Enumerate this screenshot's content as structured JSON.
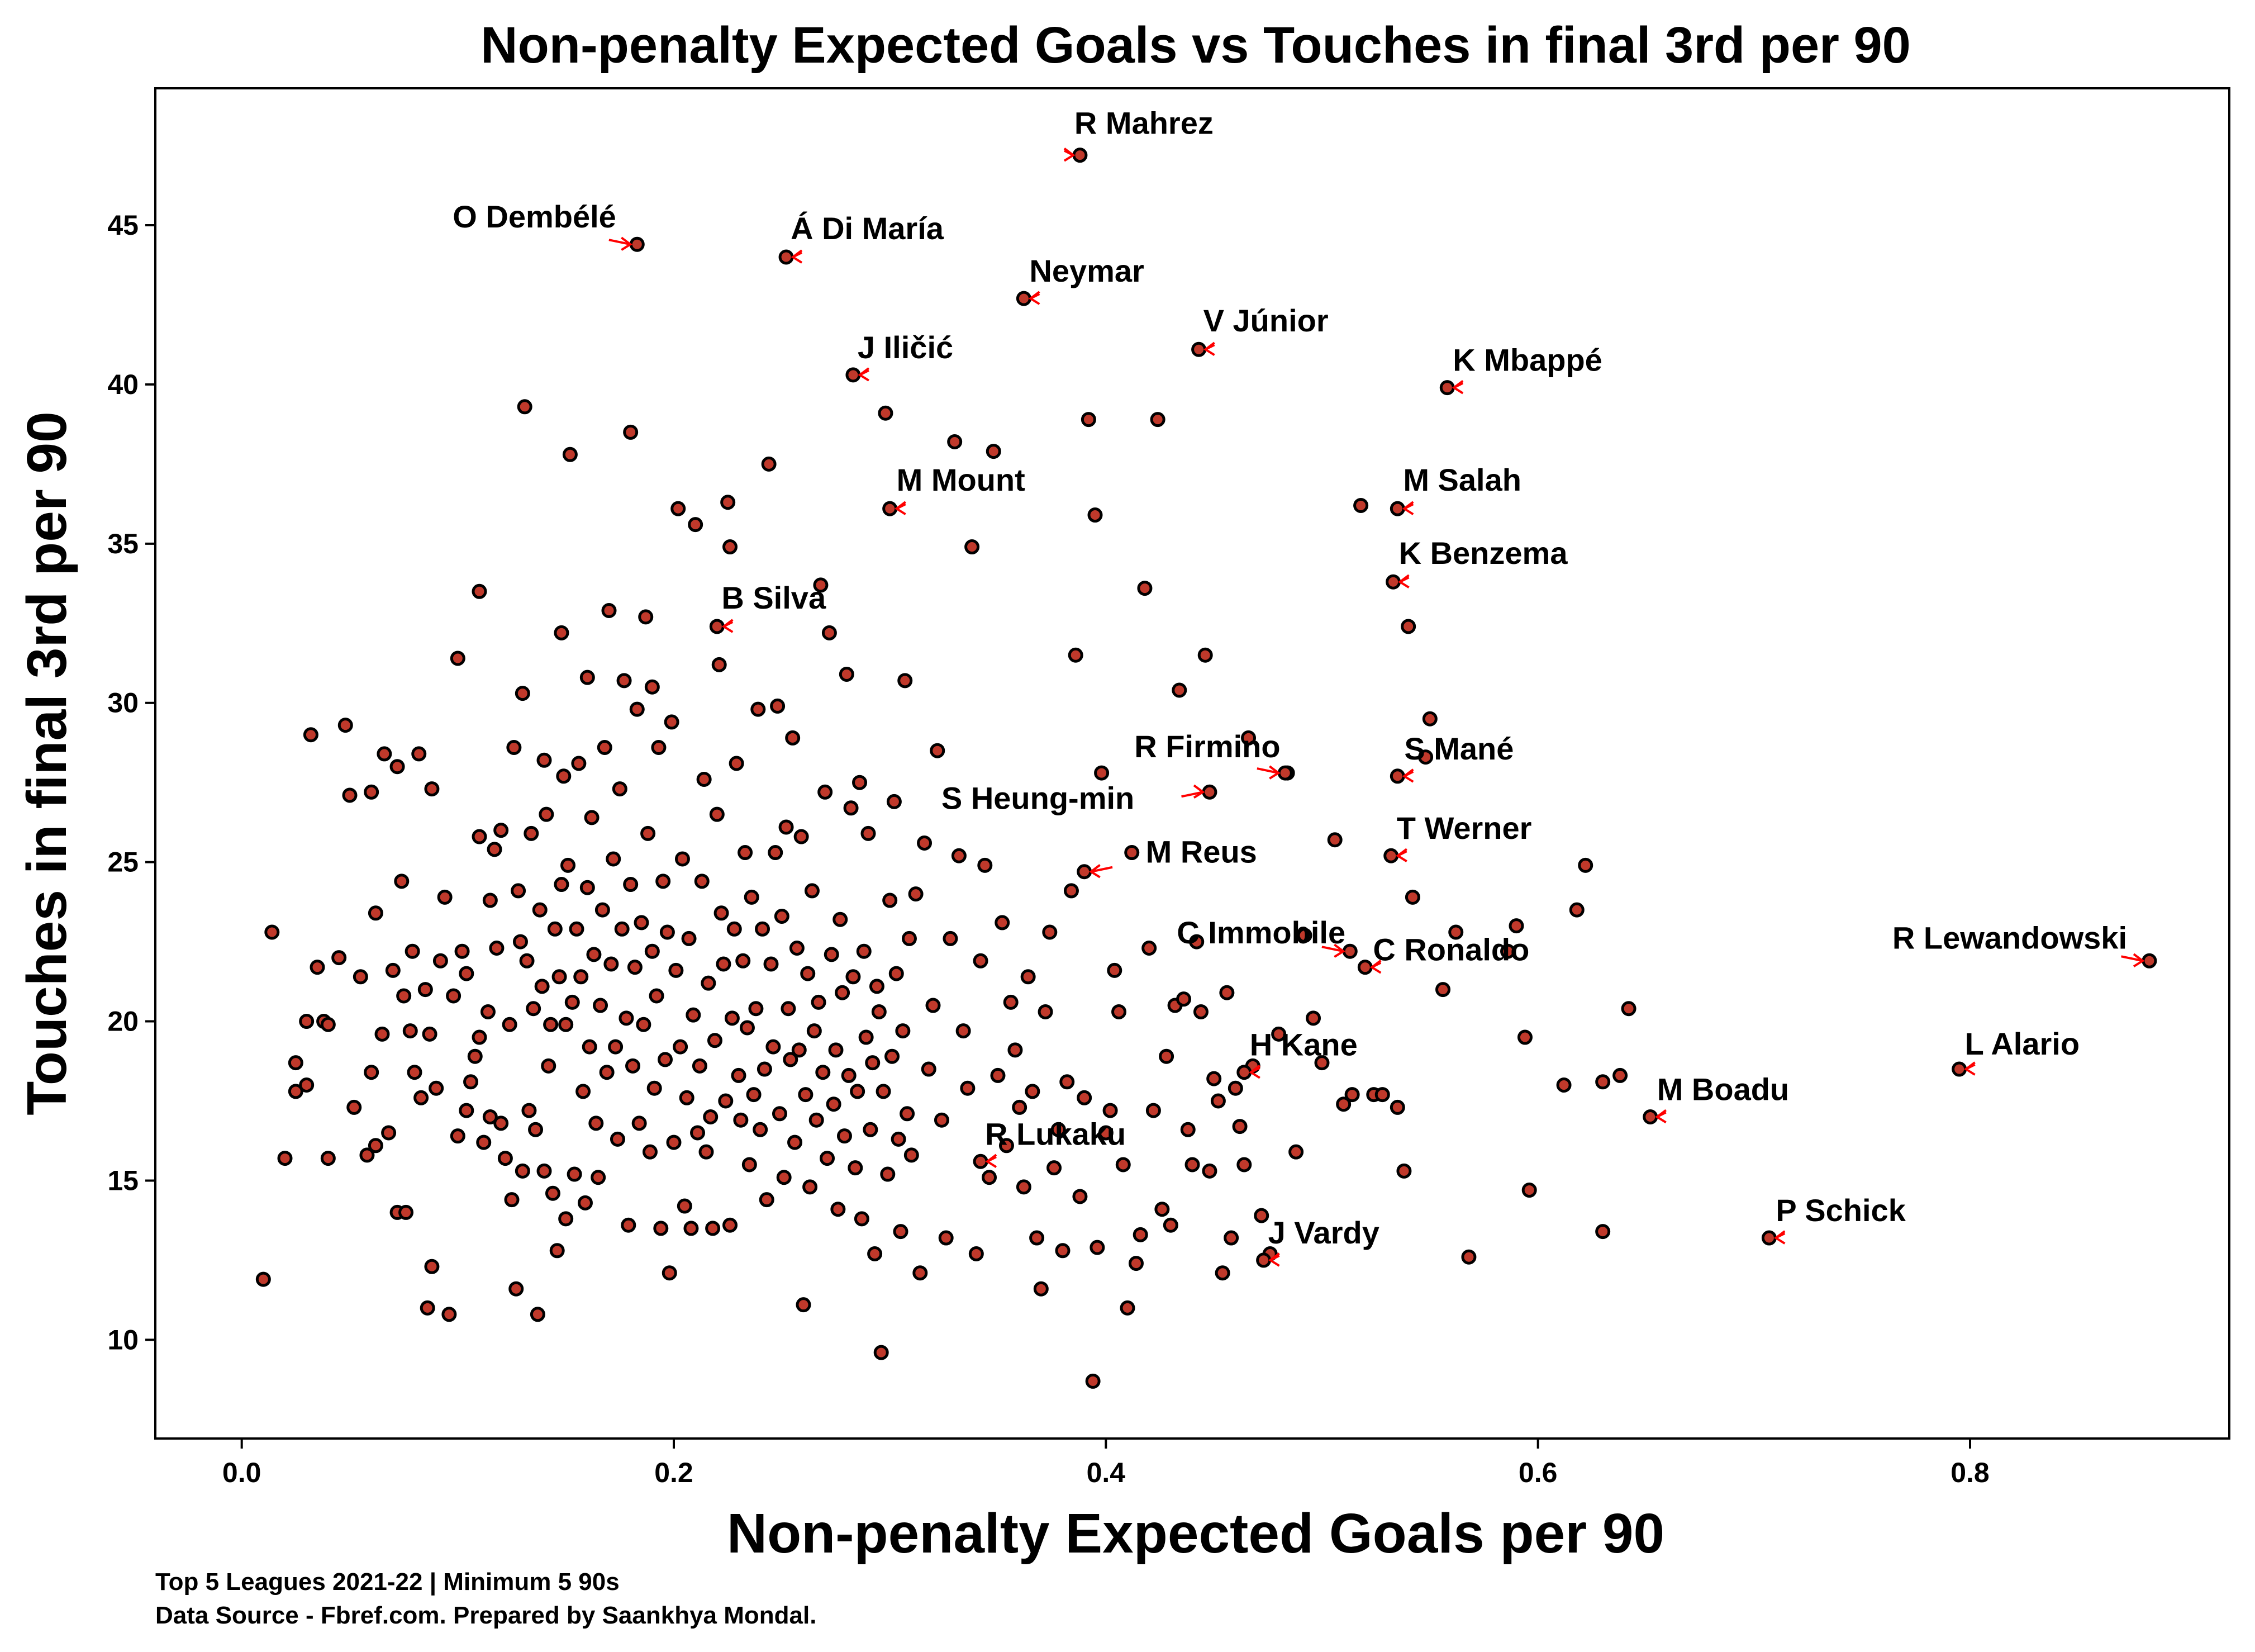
{
  "chart_data": {
    "type": "scatter",
    "title": "Non-penalty Expected Goals vs Touches in final 3rd per 90",
    "xlabel": "Non-penalty Expected Goals per 90",
    "ylabel": "Touches in final 3rd per 90",
    "xlim": [
      -0.04,
      0.92
    ],
    "ylim": [
      6.9,
      49.3
    ],
    "xticks": [
      0.0,
      0.2,
      0.4,
      0.6,
      0.8
    ],
    "xtick_labels": [
      "0.0",
      "0.2",
      "0.4",
      "0.6",
      "0.8"
    ],
    "yticks": [
      10,
      15,
      20,
      25,
      30,
      35,
      40,
      45
    ],
    "ytick_labels": [
      "10",
      "15",
      "20",
      "25",
      "30",
      "35",
      "40",
      "45"
    ],
    "grid": false,
    "legend": "none",
    "marker_fill": "#c0392b",
    "marker_edge": "#000000",
    "arrow_color": "#ff0000",
    "points": [
      [
        0.01,
        11.9
      ],
      [
        0.014,
        22.8
      ],
      [
        0.02,
        15.7
      ],
      [
        0.025,
        18.7
      ],
      [
        0.025,
        17.8
      ],
      [
        0.03,
        20
      ],
      [
        0.03,
        18
      ],
      [
        0.032,
        29
      ],
      [
        0.035,
        21.7
      ],
      [
        0.038,
        20
      ],
      [
        0.04,
        15.7
      ],
      [
        0.04,
        19.9
      ],
      [
        0.045,
        22
      ],
      [
        0.048,
        29.3
      ],
      [
        0.05,
        27.1
      ],
      [
        0.052,
        17.3
      ],
      [
        0.055,
        21.4
      ],
      [
        0.058,
        15.8
      ],
      [
        0.06,
        27.2
      ],
      [
        0.06,
        18.4
      ],
      [
        0.062,
        16.1
      ],
      [
        0.062,
        23.4
      ],
      [
        0.065,
        19.6
      ],
      [
        0.066,
        28.4
      ],
      [
        0.068,
        16.5
      ],
      [
        0.07,
        21.6
      ],
      [
        0.072,
        28
      ],
      [
        0.072,
        14
      ],
      [
        0.074,
        24.4
      ],
      [
        0.075,
        20.8
      ],
      [
        0.076,
        14
      ],
      [
        0.078,
        19.7
      ],
      [
        0.079,
        22.2
      ],
      [
        0.08,
        18.4
      ],
      [
        0.082,
        28.4
      ],
      [
        0.083,
        17.6
      ],
      [
        0.085,
        21
      ],
      [
        0.086,
        11
      ],
      [
        0.087,
        19.6
      ],
      [
        0.088,
        12.3
      ],
      [
        0.088,
        27.3
      ],
      [
        0.09,
        17.9
      ],
      [
        0.092,
        21.9
      ],
      [
        0.094,
        23.9
      ],
      [
        0.096,
        10.8
      ],
      [
        0.098,
        20.8
      ],
      [
        0.1,
        31.4
      ],
      [
        0.1,
        16.4
      ],
      [
        0.102,
        22.2
      ],
      [
        0.104,
        21.5
      ],
      [
        0.104,
        17.2
      ],
      [
        0.106,
        18.1
      ],
      [
        0.108,
        18.9
      ],
      [
        0.11,
        25.8
      ],
      [
        0.11,
        33.5
      ],
      [
        0.11,
        19.5
      ],
      [
        0.112,
        16.2
      ],
      [
        0.114,
        20.3
      ],
      [
        0.115,
        23.8
      ],
      [
        0.115,
        17
      ],
      [
        0.117,
        25.4
      ],
      [
        0.118,
        22.3
      ],
      [
        0.12,
        16.8
      ],
      [
        0.12,
        26
      ],
      [
        0.122,
        15.7
      ],
      [
        0.124,
        19.9
      ],
      [
        0.125,
        14.4
      ],
      [
        0.126,
        28.6
      ],
      [
        0.127,
        11.6
      ],
      [
        0.128,
        24.1
      ],
      [
        0.129,
        22.5
      ],
      [
        0.13,
        30.3
      ],
      [
        0.13,
        15.3
      ],
      [
        0.131,
        39.3
      ],
      [
        0.132,
        21.9
      ],
      [
        0.133,
        17.2
      ],
      [
        0.134,
        25.9
      ],
      [
        0.135,
        20.4
      ],
      [
        0.136,
        16.6
      ],
      [
        0.137,
        10.8
      ],
      [
        0.138,
        23.5
      ],
      [
        0.139,
        21.1
      ],
      [
        0.14,
        15.3
      ],
      [
        0.14,
        28.2
      ],
      [
        0.141,
        26.5
      ],
      [
        0.142,
        18.6
      ],
      [
        0.143,
        19.9
      ],
      [
        0.144,
        14.6
      ],
      [
        0.145,
        22.9
      ],
      [
        0.146,
        12.8
      ],
      [
        0.147,
        21.4
      ],
      [
        0.148,
        24.3
      ],
      [
        0.148,
        32.2
      ],
      [
        0.149,
        27.7
      ],
      [
        0.15,
        13.8
      ],
      [
        0.15,
        19.9
      ],
      [
        0.151,
        24.9
      ],
      [
        0.152,
        37.8
      ],
      [
        0.153,
        20.6
      ],
      [
        0.154,
        15.2
      ],
      [
        0.155,
        22.9
      ],
      [
        0.156,
        28.1
      ],
      [
        0.157,
        21.4
      ],
      [
        0.158,
        17.8
      ],
      [
        0.159,
        14.3
      ],
      [
        0.16,
        30.8
      ],
      [
        0.16,
        24.2
      ],
      [
        0.161,
        19.2
      ],
      [
        0.162,
        26.4
      ],
      [
        0.163,
        22.1
      ],
      [
        0.164,
        16.8
      ],
      [
        0.165,
        15.1
      ],
      [
        0.166,
        20.5
      ],
      [
        0.167,
        23.5
      ],
      [
        0.168,
        28.6
      ],
      [
        0.169,
        18.4
      ],
      [
        0.17,
        32.9
      ],
      [
        0.171,
        21.8
      ],
      [
        0.172,
        25.1
      ],
      [
        0.173,
        19.2
      ],
      [
        0.174,
        16.3
      ],
      [
        0.175,
        27.3
      ],
      [
        0.176,
        22.9
      ],
      [
        0.177,
        30.7
      ],
      [
        0.178,
        20.1
      ],
      [
        0.179,
        13.6
      ],
      [
        0.18,
        24.3
      ],
      [
        0.18,
        38.5
      ],
      [
        0.181,
        18.6
      ],
      [
        0.182,
        21.7
      ],
      [
        0.183,
        29.8
      ],
      [
        0.184,
        16.8
      ],
      [
        0.185,
        23.1
      ],
      [
        0.186,
        19.9
      ],
      [
        0.187,
        32.7
      ],
      [
        0.188,
        25.9
      ],
      [
        0.189,
        15.9
      ],
      [
        0.19,
        22.2
      ],
      [
        0.19,
        30.5
      ],
      [
        0.191,
        17.9
      ],
      [
        0.192,
        20.8
      ],
      [
        0.193,
        28.6
      ],
      [
        0.194,
        13.5
      ],
      [
        0.195,
        24.4
      ],
      [
        0.196,
        18.8
      ],
      [
        0.197,
        22.8
      ],
      [
        0.198,
        12.1
      ],
      [
        0.199,
        29.4
      ],
      [
        0.2,
        16.2
      ],
      [
        0.201,
        21.6
      ],
      [
        0.202,
        36.1
      ],
      [
        0.203,
        19.2
      ],
      [
        0.204,
        25.1
      ],
      [
        0.205,
        14.2
      ],
      [
        0.206,
        17.6
      ],
      [
        0.207,
        22.6
      ],
      [
        0.208,
        13.5
      ],
      [
        0.209,
        20.2
      ],
      [
        0.21,
        35.6
      ],
      [
        0.211,
        16.5
      ],
      [
        0.212,
        18.6
      ],
      [
        0.213,
        24.4
      ],
      [
        0.214,
        27.6
      ],
      [
        0.215,
        15.9
      ],
      [
        0.216,
        21.2
      ],
      [
        0.217,
        17
      ],
      [
        0.218,
        13.5
      ],
      [
        0.219,
        19.4
      ],
      [
        0.22,
        26.5
      ],
      [
        0.221,
        31.2
      ],
      [
        0.222,
        23.4
      ],
      [
        0.223,
        21.8
      ],
      [
        0.224,
        17.5
      ],
      [
        0.225,
        36.3
      ],
      [
        0.226,
        13.6
      ],
      [
        0.226,
        34.9
      ],
      [
        0.227,
        20.1
      ],
      [
        0.228,
        22.9
      ],
      [
        0.229,
        28.1
      ],
      [
        0.23,
        18.3
      ],
      [
        0.231,
        16.9
      ],
      [
        0.232,
        21.9
      ],
      [
        0.233,
        25.3
      ],
      [
        0.234,
        19.8
      ],
      [
        0.235,
        15.5
      ],
      [
        0.236,
        23.9
      ],
      [
        0.237,
        17.7
      ],
      [
        0.238,
        20.4
      ],
      [
        0.239,
        29.8
      ],
      [
        0.24,
        16.6
      ],
      [
        0.241,
        22.9
      ],
      [
        0.242,
        18.5
      ],
      [
        0.243,
        14.4
      ],
      [
        0.244,
        37.5
      ],
      [
        0.245,
        21.8
      ],
      [
        0.246,
        19.2
      ],
      [
        0.247,
        25.3
      ],
      [
        0.248,
        29.9
      ],
      [
        0.249,
        17.1
      ],
      [
        0.25,
        23.3
      ],
      [
        0.251,
        15.1
      ],
      [
        0.252,
        26.1
      ],
      [
        0.253,
        20.4
      ],
      [
        0.254,
        18.8
      ],
      [
        0.255,
        28.9
      ],
      [
        0.256,
        16.2
      ],
      [
        0.257,
        22.3
      ],
      [
        0.258,
        19.1
      ],
      [
        0.259,
        25.8
      ],
      [
        0.26,
        11.1
      ],
      [
        0.261,
        17.7
      ],
      [
        0.262,
        21.5
      ],
      [
        0.263,
        14.8
      ],
      [
        0.264,
        24.1
      ],
      [
        0.265,
        19.7
      ],
      [
        0.266,
        16.9
      ],
      [
        0.267,
        20.6
      ],
      [
        0.268,
        33.7
      ],
      [
        0.269,
        18.4
      ],
      [
        0.27,
        27.2
      ],
      [
        0.271,
        15.7
      ],
      [
        0.272,
        32.2
      ],
      [
        0.273,
        22.1
      ],
      [
        0.274,
        17.4
      ],
      [
        0.275,
        19.1
      ],
      [
        0.276,
        14.1
      ],
      [
        0.277,
        23.2
      ],
      [
        0.278,
        20.9
      ],
      [
        0.279,
        16.4
      ],
      [
        0.28,
        30.9
      ],
      [
        0.281,
        18.3
      ],
      [
        0.282,
        26.7
      ],
      [
        0.283,
        21.4
      ],
      [
        0.284,
        15.4
      ],
      [
        0.285,
        17.8
      ],
      [
        0.286,
        27.5
      ],
      [
        0.287,
        13.8
      ],
      [
        0.288,
        22.2
      ],
      [
        0.289,
        19.5
      ],
      [
        0.29,
        25.9
      ],
      [
        0.291,
        16.6
      ],
      [
        0.292,
        18.7
      ],
      [
        0.293,
        12.7
      ],
      [
        0.294,
        21.1
      ],
      [
        0.295,
        20.3
      ],
      [
        0.296,
        9.6
      ],
      [
        0.297,
        17.8
      ],
      [
        0.298,
        39.1
      ],
      [
        0.299,
        15.2
      ],
      [
        0.3,
        23.8
      ],
      [
        0.301,
        18.9
      ],
      [
        0.302,
        26.9
      ],
      [
        0.303,
        21.5
      ],
      [
        0.304,
        16.3
      ],
      [
        0.305,
        13.4
      ],
      [
        0.306,
        19.7
      ],
      [
        0.307,
        30.7
      ],
      [
        0.308,
        17.1
      ],
      [
        0.309,
        22.6
      ],
      [
        0.31,
        15.8
      ],
      [
        0.312,
        24
      ],
      [
        0.314,
        12.1
      ],
      [
        0.316,
        25.6
      ],
      [
        0.318,
        18.5
      ],
      [
        0.32,
        20.5
      ],
      [
        0.322,
        28.5
      ],
      [
        0.324,
        16.9
      ],
      [
        0.326,
        13.2
      ],
      [
        0.328,
        22.6
      ],
      [
        0.33,
        38.2
      ],
      [
        0.332,
        25.2
      ],
      [
        0.334,
        19.7
      ],
      [
        0.336,
        17.9
      ],
      [
        0.338,
        34.9
      ],
      [
        0.34,
        12.7
      ],
      [
        0.342,
        21.9
      ],
      [
        0.344,
        24.9
      ],
      [
        0.346,
        15.1
      ],
      [
        0.348,
        37.9
      ],
      [
        0.35,
        18.3
      ],
      [
        0.352,
        23.1
      ],
      [
        0.354,
        16.1
      ],
      [
        0.356,
        20.6
      ],
      [
        0.358,
        19.1
      ],
      [
        0.36,
        17.3
      ],
      [
        0.362,
        14.8
      ],
      [
        0.364,
        21.4
      ],
      [
        0.366,
        17.8
      ],
      [
        0.368,
        13.2
      ],
      [
        0.37,
        11.6
      ],
      [
        0.372,
        20.3
      ],
      [
        0.374,
        22.8
      ],
      [
        0.376,
        15.4
      ],
      [
        0.378,
        16.6
      ],
      [
        0.38,
        12.8
      ],
      [
        0.382,
        18.1
      ],
      [
        0.384,
        24.1
      ],
      [
        0.386,
        31.5
      ],
      [
        0.388,
        14.5
      ],
      [
        0.39,
        17.6
      ],
      [
        0.392,
        38.9
      ],
      [
        0.394,
        8.7
      ],
      [
        0.395,
        35.9
      ],
      [
        0.396,
        12.9
      ],
      [
        0.398,
        27.8
      ],
      [
        0.4,
        16.5
      ],
      [
        0.402,
        17.2
      ],
      [
        0.404,
        21.6
      ],
      [
        0.406,
        20.3
      ],
      [
        0.408,
        15.5
      ],
      [
        0.41,
        11
      ],
      [
        0.412,
        25.3
      ],
      [
        0.414,
        12.4
      ],
      [
        0.416,
        13.3
      ],
      [
        0.418,
        33.6
      ],
      [
        0.42,
        22.3
      ],
      [
        0.422,
        17.2
      ],
      [
        0.424,
        38.9
      ],
      [
        0.426,
        14.1
      ],
      [
        0.428,
        18.9
      ],
      [
        0.43,
        13.6
      ],
      [
        0.432,
        20.5
      ],
      [
        0.434,
        30.4
      ],
      [
        0.436,
        20.7
      ],
      [
        0.438,
        16.6
      ],
      [
        0.44,
        15.5
      ],
      [
        0.442,
        22.5
      ],
      [
        0.444,
        20.3
      ],
      [
        0.446,
        31.5
      ],
      [
        0.448,
        15.3
      ],
      [
        0.45,
        18.2
      ],
      [
        0.452,
        17.5
      ],
      [
        0.454,
        12.1
      ],
      [
        0.456,
        20.9
      ],
      [
        0.458,
        13.2
      ],
      [
        0.46,
        17.9
      ],
      [
        0.462,
        16.7
      ],
      [
        0.464,
        15.5
      ],
      [
        0.466,
        28.9
      ],
      [
        0.468,
        18.6
      ],
      [
        0.472,
        13.9
      ],
      [
        0.476,
        12.7
      ],
      [
        0.48,
        19.6
      ],
      [
        0.484,
        27.8
      ],
      [
        0.488,
        15.9
      ],
      [
        0.492,
        22.7
      ],
      [
        0.496,
        20.1
      ],
      [
        0.5,
        18.7
      ],
      [
        0.506,
        25.7
      ],
      [
        0.51,
        17.4
      ],
      [
        0.514,
        17.7
      ],
      [
        0.518,
        36.2
      ],
      [
        0.524,
        17.7
      ],
      [
        0.528,
        17.7
      ],
      [
        0.535,
        17.3
      ],
      [
        0.538,
        15.3
      ],
      [
        0.54,
        32.4
      ],
      [
        0.542,
        23.9
      ],
      [
        0.548,
        28.3
      ],
      [
        0.55,
        29.5
      ],
      [
        0.556,
        21
      ],
      [
        0.562,
        22.8
      ],
      [
        0.568,
        12.6
      ],
      [
        0.586,
        22.2
      ],
      [
        0.59,
        23
      ],
      [
        0.594,
        19.5
      ],
      [
        0.596,
        14.7
      ],
      [
        0.612,
        18
      ],
      [
        0.618,
        23.5
      ],
      [
        0.622,
        24.9
      ],
      [
        0.63,
        18.1
      ],
      [
        0.63,
        13.4
      ],
      [
        0.638,
        18.3
      ],
      [
        0.642,
        20.4
      ]
    ],
    "labeled_players": [
      {
        "name": "R Mahrez",
        "x": 0.388,
        "y": 47.2
      },
      {
        "name": "O Dembélé",
        "x": 0.183,
        "y": 44.4
      },
      {
        "name": "Á Di María",
        "x": 0.252,
        "y": 44
      },
      {
        "name": "Neymar",
        "x": 0.362,
        "y": 42.7
      },
      {
        "name": "V Júnior",
        "x": 0.443,
        "y": 41.1
      },
      {
        "name": "J Iličić",
        "x": 0.283,
        "y": 40.3
      },
      {
        "name": "K Mbappé",
        "x": 0.558,
        "y": 39.9
      },
      {
        "name": "M Mount",
        "x": 0.3,
        "y": 36.1
      },
      {
        "name": "M Salah",
        "x": 0.535,
        "y": 36.1
      },
      {
        "name": "K Benzema",
        "x": 0.533,
        "y": 33.8
      },
      {
        "name": "B Silva",
        "x": 0.22,
        "y": 32.4
      },
      {
        "name": "R Firmino",
        "x": 0.483,
        "y": 27.8
      },
      {
        "name": "S Mané",
        "x": 0.535,
        "y": 27.7
      },
      {
        "name": "S Heung-min",
        "x": 0.448,
        "y": 27.2
      },
      {
        "name": "T Werner",
        "x": 0.532,
        "y": 25.2
      },
      {
        "name": "M Reus",
        "x": 0.39,
        "y": 24.7
      },
      {
        "name": "C Immobile",
        "x": 0.513,
        "y": 22.2
      },
      {
        "name": "C Ronaldo",
        "x": 0.52,
        "y": 21.7
      },
      {
        "name": "R Lewandowski",
        "x": 0.883,
        "y": 21.9
      },
      {
        "name": "L Alario",
        "x": 0.795,
        "y": 18.5
      },
      {
        "name": "H Kane",
        "x": 0.464,
        "y": 18.4
      },
      {
        "name": "M Boadu",
        "x": 0.652,
        "y": 17
      },
      {
        "name": "R Lukaku",
        "x": 0.342,
        "y": 15.6
      },
      {
        "name": "P Schick",
        "x": 0.707,
        "y": 13.2
      },
      {
        "name": "J Vardy",
        "x": 0.473,
        "y": 12.5
      }
    ]
  },
  "footer": {
    "line1": "Top 5 Leagues 2021-22 | Minimum 5 90s",
    "line2": "Data Source - Fbref.com. Prepared by Saankhya Mondal."
  }
}
